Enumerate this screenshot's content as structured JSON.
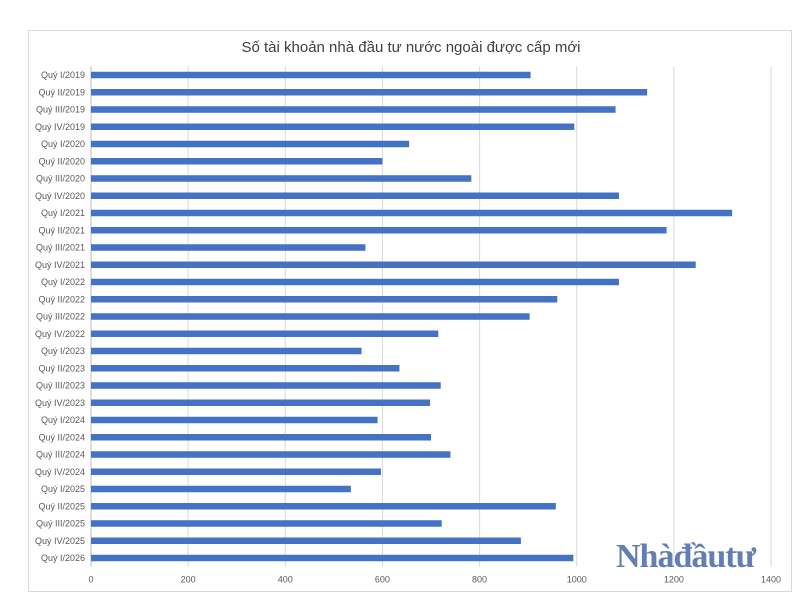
{
  "watermark": "Nhàđầutư",
  "chart_data": {
    "type": "bar",
    "orientation": "horizontal",
    "title": "Số tài khoản nhà đầu tư nước ngoài được cấp mới",
    "categories": [
      "Quý I/2019",
      "Quý II/2019",
      "Quý III/2019",
      "Quý IV/2019",
      "Quý I/2020",
      "Quý II/2020",
      "Quý III/2020",
      "Quý IV/2020",
      "Quý I/2021",
      "Quý II/2021",
      "Quý III/2021",
      "Quý IV/2021",
      "Quý I/2022",
      "Quý II/2022",
      "Quý III/2022",
      "Quý IV/2022",
      "Quý I/2023",
      "Quý II/2023",
      "Quý III/2023",
      "Quý IV/2023",
      "Quý I/2024",
      "Quý II/2024",
      "Quý III/2024",
      "Quý IV/2024",
      "Quý I/2025",
      "Quý II/2025",
      "Quý III/2025",
      "Quý IV/2025",
      "Quý I/2026"
    ],
    "values": [
      905,
      1145,
      1080,
      995,
      655,
      600,
      783,
      1087,
      1320,
      1185,
      565,
      1245,
      1087,
      960,
      903,
      715,
      557,
      635,
      720,
      698,
      590,
      700,
      740,
      597,
      535,
      957,
      722,
      885,
      993
    ],
    "xlim": [
      0,
      1400
    ],
    "xticks": [
      0,
      200,
      400,
      600,
      800,
      1000,
      1200,
      1400
    ],
    "grid": true,
    "legend": "none"
  }
}
